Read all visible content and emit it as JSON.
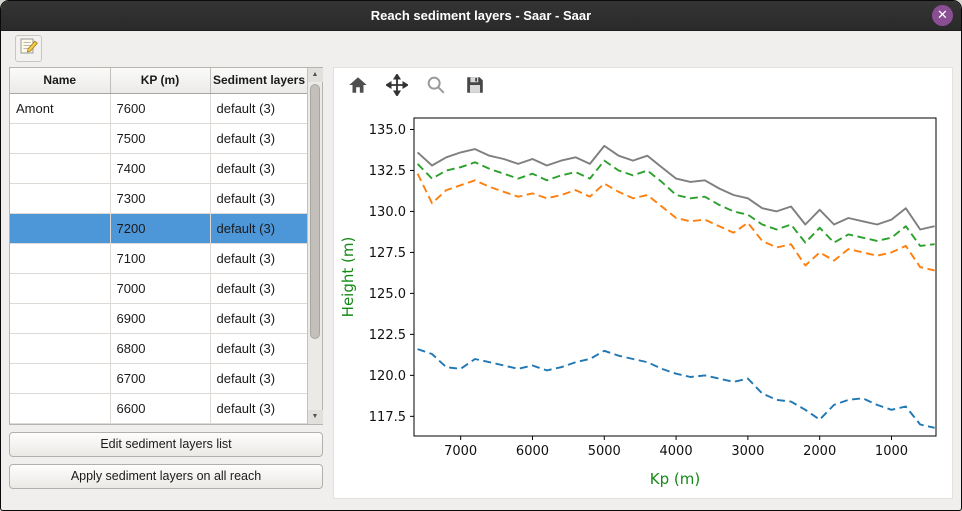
{
  "window": {
    "title": "Reach sediment layers - Saar - Saar",
    "close_label": "✕"
  },
  "colors": {
    "titlebar": "#2c2c2c",
    "close_button": "#8a4f92",
    "row_selection": "#4d97d8",
    "axis_label_green": "#168a16"
  },
  "table": {
    "columns": [
      "Name",
      "KP (m)",
      "Sediment layers"
    ],
    "rows": [
      {
        "name": "Amont",
        "kp": "7600",
        "layers": "default (3)",
        "selected": false
      },
      {
        "name": "",
        "kp": "7500",
        "layers": "default (3)",
        "selected": false
      },
      {
        "name": "",
        "kp": "7400",
        "layers": "default (3)",
        "selected": false
      },
      {
        "name": "",
        "kp": "7300",
        "layers": "default (3)",
        "selected": false
      },
      {
        "name": "",
        "kp": "7200",
        "layers": "default (3)",
        "selected": true
      },
      {
        "name": "",
        "kp": "7100",
        "layers": "default (3)",
        "selected": false
      },
      {
        "name": "",
        "kp": "7000",
        "layers": "default (3)",
        "selected": false
      },
      {
        "name": "",
        "kp": "6900",
        "layers": "default (3)",
        "selected": false
      },
      {
        "name": "",
        "kp": "6800",
        "layers": "default (3)",
        "selected": false
      },
      {
        "name": "",
        "kp": "6700",
        "layers": "default (3)",
        "selected": false
      },
      {
        "name": "",
        "kp": "6600",
        "layers": "default (3)",
        "selected": false
      }
    ]
  },
  "buttons": {
    "edit": "Edit sediment layers list",
    "apply": "Apply sediment layers on all reach"
  },
  "plot_toolbar": {
    "icons": [
      "home-icon",
      "pan-icon",
      "zoom-icon",
      "save-icon"
    ]
  },
  "chart_data": {
    "type": "line",
    "title": "",
    "xlabel": "Kp (m)",
    "ylabel": "Height (m)",
    "axis_label_color": "#168a16",
    "x_inverted": true,
    "xlim": [
      7650,
      380
    ],
    "ylim": [
      116.3,
      135.7
    ],
    "x_ticks": [
      7000,
      6000,
      5000,
      4000,
      3000,
      2000,
      1000
    ],
    "y_ticks": [
      117.5,
      120.0,
      122.5,
      125.0,
      127.5,
      130.0,
      132.5,
      135.0
    ],
    "grid": false,
    "legend": "none",
    "x": [
      7600,
      7400,
      7200,
      7000,
      6800,
      6600,
      6400,
      6200,
      6000,
      5800,
      5600,
      5400,
      5200,
      5000,
      4800,
      4600,
      4400,
      4200,
      4000,
      3800,
      3600,
      3400,
      3200,
      3000,
      2800,
      2600,
      2400,
      2200,
      2000,
      1800,
      1600,
      1400,
      1200,
      1000,
      800,
      600,
      400
    ],
    "series": [
      {
        "name": "top-layer-gray-solid",
        "color": "#7f7f7f",
        "dash": "solid",
        "values": [
          133.6,
          132.8,
          133.3,
          133.6,
          133.8,
          133.4,
          133.2,
          132.9,
          133.2,
          132.8,
          133.1,
          133.3,
          132.9,
          134.0,
          133.4,
          133.1,
          133.4,
          132.7,
          132.0,
          131.8,
          131.9,
          131.4,
          131.0,
          130.8,
          130.2,
          130.0,
          130.3,
          129.2,
          130.1,
          129.2,
          129.6,
          129.4,
          129.2,
          129.5,
          130.2,
          128.9,
          129.1
        ]
      },
      {
        "name": "layer-green-dashed",
        "color": "#2ca02c",
        "dash": "dashed",
        "values": [
          132.9,
          132.0,
          132.5,
          132.7,
          133.0,
          132.6,
          132.3,
          132.0,
          132.3,
          131.9,
          132.2,
          132.4,
          132.0,
          133.1,
          132.5,
          132.2,
          132.5,
          131.8,
          131.0,
          130.8,
          130.9,
          130.4,
          130.0,
          129.8,
          129.2,
          128.9,
          129.2,
          128.1,
          129.0,
          128.1,
          128.6,
          128.4,
          128.2,
          128.4,
          129.1,
          127.9,
          128.0
        ]
      },
      {
        "name": "layer-orange-dashed",
        "color": "#ff7f0e",
        "dash": "dashed",
        "values": [
          132.3,
          130.5,
          131.3,
          131.6,
          131.9,
          131.5,
          131.2,
          130.9,
          131.1,
          130.8,
          131.0,
          131.3,
          130.9,
          131.7,
          131.2,
          130.8,
          131.0,
          130.3,
          129.6,
          129.4,
          129.5,
          129.1,
          128.7,
          129.3,
          128.2,
          127.8,
          128.0,
          126.7,
          127.5,
          127.0,
          127.7,
          127.5,
          127.3,
          127.5,
          127.9,
          126.6,
          126.4
        ]
      },
      {
        "name": "bottom-blue-dashed",
        "color": "#1f77b4",
        "dash": "dashed",
        "values": [
          121.6,
          121.3,
          120.5,
          120.4,
          121.0,
          120.8,
          120.6,
          120.4,
          120.6,
          120.3,
          120.5,
          120.8,
          121.0,
          121.5,
          121.2,
          121.0,
          120.8,
          120.4,
          120.1,
          119.9,
          120.0,
          119.8,
          119.6,
          119.8,
          118.9,
          118.5,
          118.4,
          117.9,
          117.3,
          118.2,
          118.5,
          118.6,
          118.2,
          117.9,
          118.1,
          117.0,
          116.8
        ]
      }
    ]
  }
}
